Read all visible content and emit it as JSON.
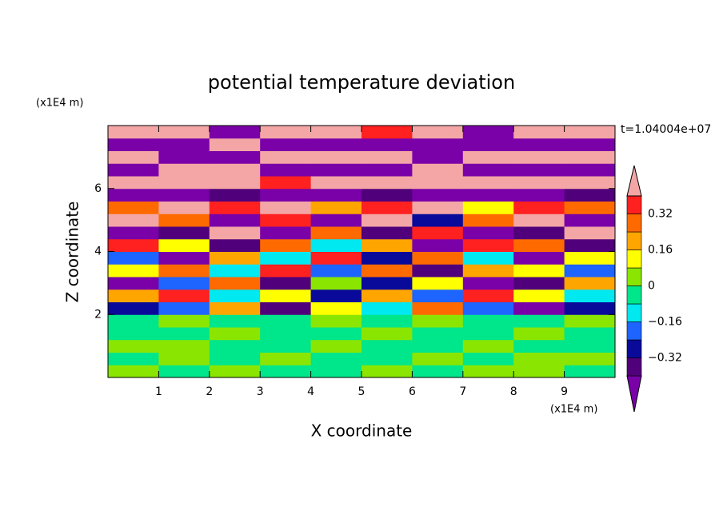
{
  "chart_data": {
    "type": "contour",
    "title": "potential temperature deviation",
    "x_label": "X coordinate",
    "y_label": "Z coordinate",
    "x_unit": "(x1E4 m)",
    "y_unit": "(x1E4 m)",
    "annotation": "t=1.04004e+07",
    "xlim": [
      0,
      10
    ],
    "ylim": [
      0,
      8
    ],
    "xticks": [
      1,
      2,
      3,
      4,
      5,
      6,
      7,
      8,
      9
    ],
    "yticks": [
      2,
      4,
      6
    ],
    "x": [
      0.5,
      1.5,
      2.5,
      3.5,
      4.5,
      5.5,
      6.5,
      7.5,
      8.5,
      9.5
    ],
    "y": [
      0.2,
      0.6,
      1.0,
      1.4,
      1.8,
      2.2,
      2.6,
      3.0,
      3.4,
      3.8,
      4.2,
      4.6,
      5.0,
      5.4,
      5.8,
      6.2,
      6.6,
      7.0,
      7.4,
      7.8
    ],
    "values": [
      [
        0.04,
        -0.04,
        0.04,
        -0.04,
        -0.04,
        0.04,
        -0.04,
        0.04,
        0.04,
        -0.04
      ],
      [
        -0.04,
        0.04,
        -0.04,
        0.04,
        -0.04,
        -0.04,
        0.04,
        -0.04,
        0.04,
        0.04
      ],
      [
        0.04,
        0.04,
        -0.04,
        -0.04,
        0.04,
        -0.04,
        -0.04,
        0.04,
        -0.04,
        -0.04
      ],
      [
        -0.04,
        -0.04,
        0.04,
        -0.04,
        -0.04,
        0.04,
        -0.04,
        -0.04,
        0.04,
        -0.04
      ],
      [
        -0.04,
        0.04,
        -0.04,
        -0.04,
        0.04,
        -0.04,
        0.04,
        -0.04,
        -0.04,
        0.04
      ],
      [
        -0.28,
        -0.2,
        0.2,
        -0.36,
        0.12,
        -0.12,
        0.28,
        -0.2,
        -0.5,
        -0.28
      ],
      [
        0.2,
        0.36,
        -0.12,
        0.12,
        -0.28,
        0.2,
        -0.2,
        0.36,
        0.12,
        -0.12
      ],
      [
        -0.5,
        -0.2,
        0.28,
        -0.36,
        0.04,
        -0.28,
        0.12,
        -0.5,
        -0.36,
        0.2
      ],
      [
        0.12,
        0.28,
        -0.12,
        0.36,
        -0.2,
        0.28,
        -0.36,
        0.2,
        0.12,
        -0.2
      ],
      [
        -0.2,
        -0.5,
        0.2,
        -0.12,
        0.36,
        -0.28,
        0.28,
        -0.12,
        -0.5,
        0.12
      ],
      [
        0.36,
        0.12,
        -0.36,
        0.28,
        -0.12,
        0.2,
        -0.5,
        0.36,
        0.28,
        -0.36
      ],
      [
        -0.5,
        -0.36,
        0.5,
        -0.5,
        0.28,
        -0.36,
        0.36,
        -0.5,
        -0.36,
        0.5
      ],
      [
        0.5,
        0.28,
        -0.5,
        0.36,
        -0.5,
        0.5,
        -0.28,
        0.28,
        0.5,
        -0.5
      ],
      [
        0.28,
        0.5,
        0.36,
        0.5,
        0.2,
        0.36,
        0.5,
        0.12,
        0.36,
        0.28
      ],
      [
        -0.5,
        -0.5,
        -0.36,
        -0.5,
        -0.5,
        -0.36,
        -0.5,
        -0.5,
        -0.5,
        -0.36
      ],
      [
        0.5,
        0.5,
        0.5,
        0.36,
        0.5,
        0.5,
        0.5,
        0.5,
        0.5,
        0.5
      ],
      [
        -0.5,
        0.5,
        0.5,
        -0.5,
        -0.5,
        -0.5,
        0.5,
        -0.5,
        -0.5,
        -0.5
      ],
      [
        0.5,
        -0.5,
        -0.5,
        0.5,
        0.5,
        0.5,
        -0.5,
        0.5,
        0.5,
        0.5
      ],
      [
        -0.5,
        -0.5,
        0.5,
        -0.5,
        -0.5,
        -0.5,
        -0.5,
        -0.5,
        -0.5,
        -0.5
      ],
      [
        0.5,
        0.5,
        -0.5,
        0.5,
        0.5,
        0.36,
        0.5,
        -0.5,
        0.5,
        0.5
      ]
    ],
    "levels": [
      -0.4,
      -0.32,
      -0.24,
      -0.16,
      -0.08,
      0,
      0.08,
      0.16,
      0.24,
      0.32,
      0.4
    ],
    "colors": [
      "#7a00a8",
      "#50007a",
      "#0a0a9a",
      "#1e64ff",
      "#00e8f0",
      "#00e68a",
      "#8ae600",
      "#ffff00",
      "#ffa500",
      "#ff6a00",
      "#ff2020",
      "#f4a6a6"
    ],
    "colorbar_ticks": [
      {
        "value": -0.32,
        "label": "−0.32"
      },
      {
        "value": -0.16,
        "label": "−0.16"
      },
      0,
      0.16,
      0.32
    ]
  }
}
